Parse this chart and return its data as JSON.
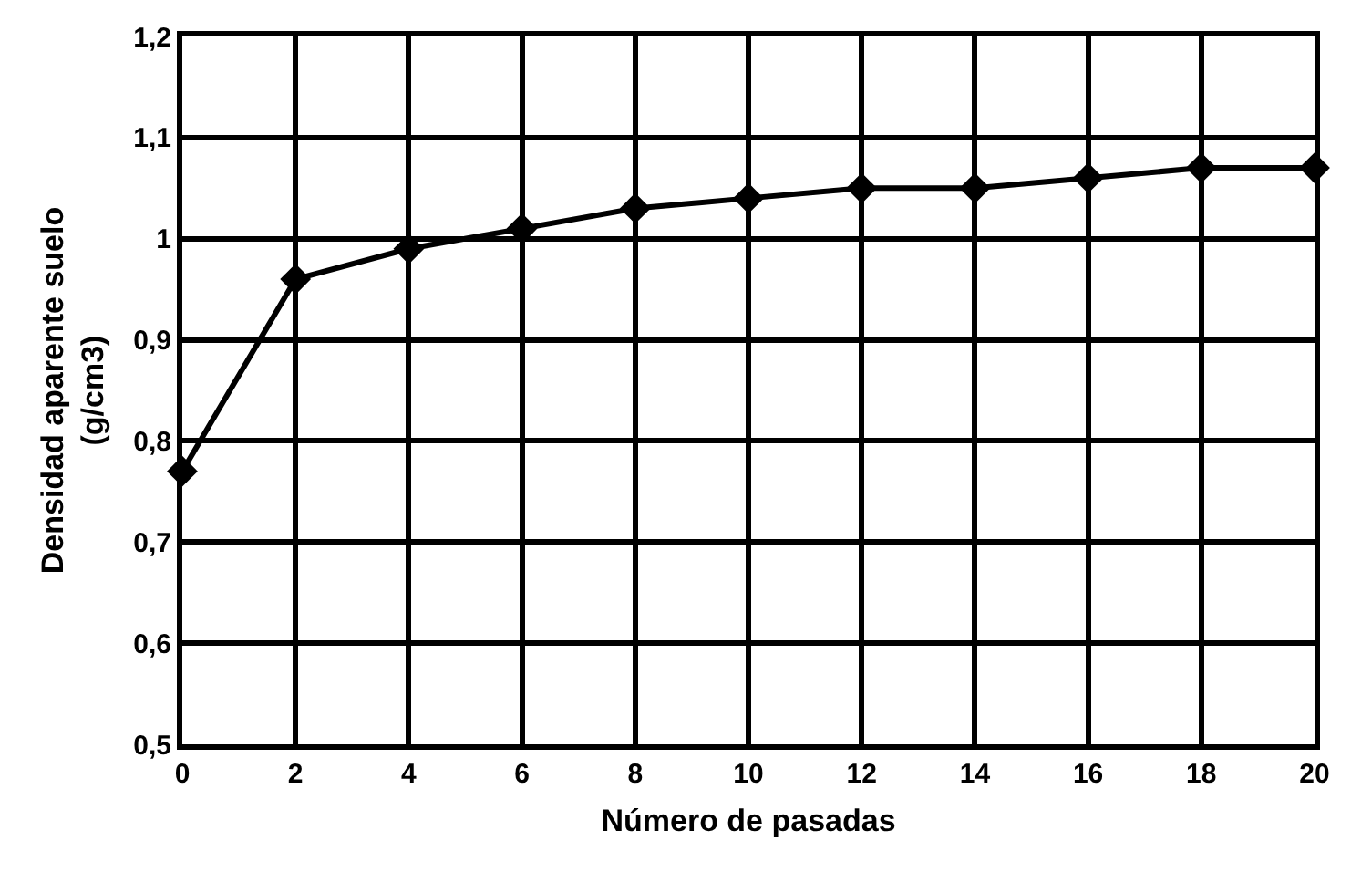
{
  "chart_data": {
    "type": "line",
    "xlabel": "Número de pasadas",
    "ylabel": "Densidad aparente suelo\n(g/cm3)",
    "x": [
      0,
      2,
      4,
      6,
      8,
      10,
      12,
      14,
      16,
      18,
      20
    ],
    "series": [
      {
        "color": "#000000",
        "values": [
          0.77,
          0.96,
          0.99,
          1.01,
          1.03,
          1.04,
          1.05,
          1.05,
          1.06,
          1.07,
          1.07
        ]
      }
    ],
    "xlim": [
      0,
      20
    ],
    "xticks": [
      0,
      2,
      4,
      6,
      8,
      10,
      12,
      14,
      16,
      18,
      20
    ],
    "ylim": [
      0.5,
      1.2
    ],
    "yticks": [
      {
        "value": 0.5,
        "label": "0,5"
      },
      {
        "value": 0.6,
        "label": "0,6"
      },
      {
        "value": 0.7,
        "label": "0,7"
      },
      {
        "value": 0.8,
        "label": "0,8"
      },
      {
        "value": 0.9,
        "label": "0,9"
      },
      {
        "value": 1,
        "label": "1"
      },
      {
        "value": 1.1,
        "label": "1,1"
      },
      {
        "value": 1.2,
        "label": "1,2"
      }
    ],
    "grid": true,
    "marker": "diamond",
    "line_style": "solid",
    "legend": false
  }
}
